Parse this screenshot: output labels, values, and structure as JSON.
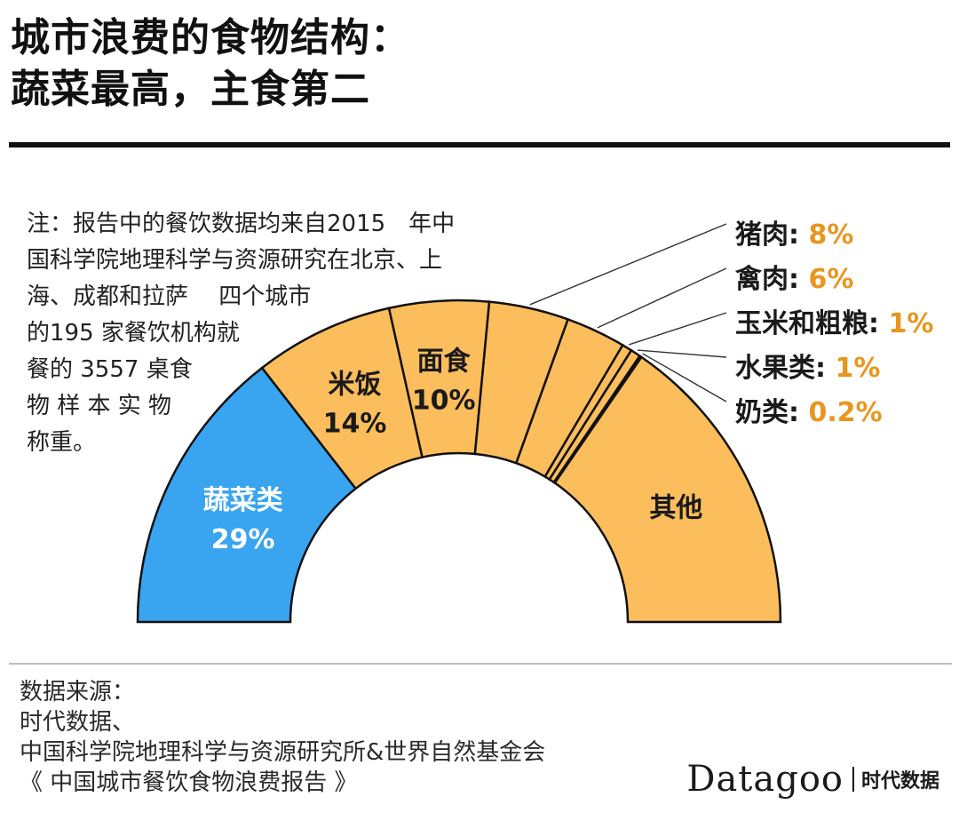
{
  "title": {
    "line1": "城市浪费的食物结构：",
    "line2": "蔬菜最高，主食第二"
  },
  "note": [
    "注：报告中的餐饮数据均来自2015　年中",
    "国科学院地理科学与资源研究在北京、上",
    "海、成都和拉萨　 四个城市",
    "的195 家餐饮机构就",
    "餐的 3557 桌食",
    "物 样 本 实 物",
    "称重。"
  ],
  "colors": {
    "highlight": "#39a4f0",
    "base": "#fcbd5c",
    "stroke": "#111111",
    "value_accent": "#e8961f",
    "leader": "#333333"
  },
  "chart_data": {
    "type": "pie",
    "shape": "half-donut",
    "slices": [
      {
        "label": "蔬菜类",
        "value": 29,
        "value_text": "29%",
        "label_position": "inside",
        "highlight": true
      },
      {
        "label": "米饭",
        "value": 14,
        "value_text": "14%",
        "label_position": "inside"
      },
      {
        "label": "面食",
        "value": 10,
        "value_text": "10%",
        "label_position": "inside"
      },
      {
        "label": "猪肉",
        "value": 8,
        "value_text": "8%",
        "label_position": "outside"
      },
      {
        "label": "禽肉",
        "value": 6,
        "value_text": "6%",
        "label_position": "outside"
      },
      {
        "label": "玉米和粗粮",
        "value": 1,
        "value_text": "1%",
        "label_position": "outside"
      },
      {
        "label": "水果类",
        "value": 1,
        "value_text": "1%",
        "label_position": "outside"
      },
      {
        "label": "奶类",
        "value": 0.2,
        "value_text": "0.2%",
        "label_position": "outside"
      },
      {
        "label": "其他",
        "value": 30.8,
        "value_text": "",
        "label_position": "inside"
      }
    ]
  },
  "source": {
    "label": "数据来源：",
    "lines": [
      "时代数据、",
      "中国科学院地理科学与资源研究所&世界自然基金会",
      "《 中国城市餐饮食物浪费报告 》"
    ]
  },
  "brand": {
    "name_en": "Datagoo",
    "name_cn": "时代数据"
  }
}
